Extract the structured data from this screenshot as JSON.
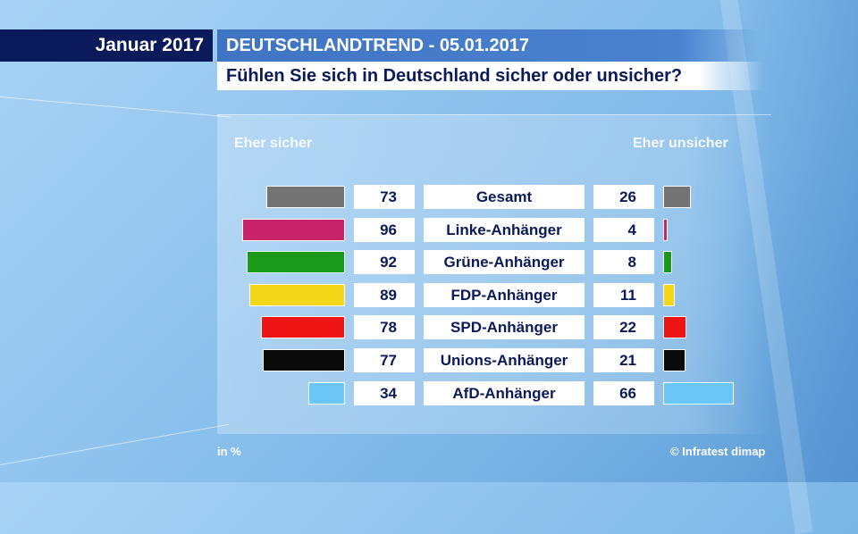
{
  "header": {
    "date_label": "Januar 2017",
    "trend_title": "DEUTSCHLANDTREND - 05.01.2017",
    "question": "Fühlen Sie sich in Deutschland sicher oder unsicher?"
  },
  "chart_data": {
    "type": "bar",
    "title": "Fühlen Sie sich in Deutschland sicher oder unsicher?",
    "left_label": "Eher sicher",
    "right_label": "Eher unsicher",
    "unit_note": "in %",
    "source": "© Infratest dimap",
    "categories": [
      "Gesamt",
      "Linke-Anhänger",
      "Grüne-Anhänger",
      "FDP-Anhänger",
      "SPD-Anhänger",
      "Unions-Anhänger",
      "AfD-Anhänger"
    ],
    "series": [
      {
        "name": "Eher sicher",
        "values": [
          73,
          96,
          92,
          89,
          78,
          77,
          34
        ]
      },
      {
        "name": "Eher unsicher",
        "values": [
          26,
          4,
          8,
          11,
          22,
          21,
          66
        ]
      }
    ],
    "colors": [
      "#737373",
      "#c8246a",
      "#1a9a1a",
      "#f5d71a",
      "#ef1414",
      "#0a0a0a",
      "#6cc6f5"
    ]
  }
}
